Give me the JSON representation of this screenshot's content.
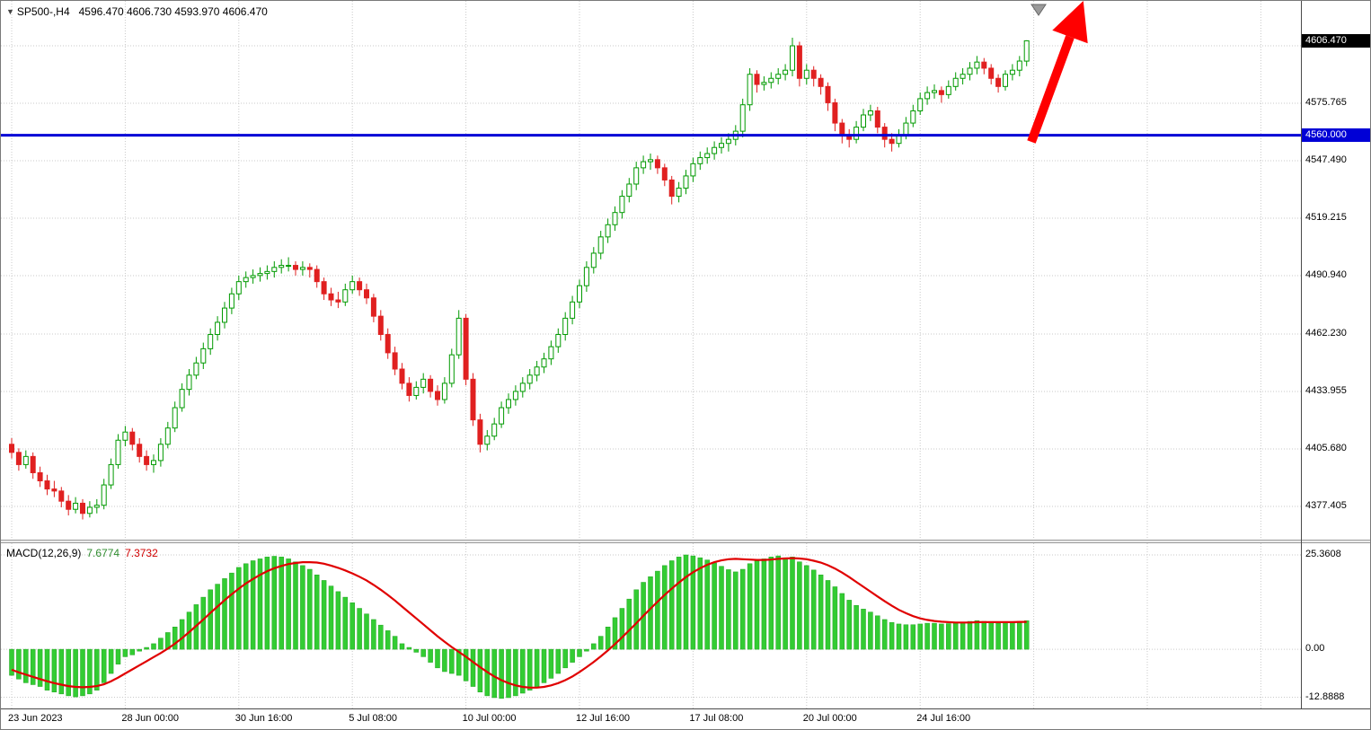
{
  "header": {
    "symbol": "SP500-,H4",
    "ohlc_text": "4596.470 4606.730 4593.970 4606.470"
  },
  "price_axis": {
    "current_price_tag": {
      "label": "4606.470",
      "price": 4606.47,
      "bg": "#000000",
      "fg": "#ffffff"
    },
    "level_tag": {
      "label": "4560.000",
      "price": 4560.0,
      "bg": "#0000d6",
      "fg": "#ffffff"
    },
    "ticks": [
      {
        "label": "4575.765",
        "price": 4575.765
      },
      {
        "label": "4547.490",
        "price": 4547.49
      },
      {
        "label": "4519.215",
        "price": 4519.215
      },
      {
        "label": "4490.940",
        "price": 4490.94
      },
      {
        "label": "4462.230",
        "price": 4462.23
      },
      {
        "label": "4433.955",
        "price": 4433.955
      },
      {
        "label": "4405.680",
        "price": 4405.68
      },
      {
        "label": "4377.405",
        "price": 4377.405
      }
    ],
    "unlabeled_gridline_price": 4604.04
  },
  "time_axis": {
    "labels": [
      "23 Jun 2023",
      "28 Jun 00:00",
      "30 Jun 16:00",
      "5 Jul 08:00",
      "10 Jul 00:00",
      "12 Jul 16:00",
      "17 Jul 08:00",
      "20 Jul 00:00",
      "24 Jul 16:00"
    ]
  },
  "macd_panel": {
    "name": "MACD(12,26,9)",
    "value_main": "7.6774",
    "value_signal": "7.3732",
    "axis_ticks": [
      {
        "label": "25.3608",
        "value": 25.3608
      },
      {
        "label": "0.00",
        "value": 0.0
      },
      {
        "label": "-12.8888",
        "value": -12.8888
      }
    ]
  },
  "objects": {
    "hline": {
      "price": 4560.0,
      "color": "#0000d6",
      "width": 3
    },
    "arrow": {
      "color": "#ff0000"
    },
    "top_marker": {
      "color": "#9a9a9a"
    }
  },
  "chart_data": {
    "type": "candlestick+macd",
    "symbol": "SP500",
    "timeframe": "H4",
    "title": "SP500-,H4 4596.470 4606.730 4593.970 4606.470",
    "price_range": [
      4360.2,
      4626.1
    ],
    "macd_range": [
      -15.9,
      28.5
    ],
    "grid": true,
    "colors": {
      "bull_fill": "#ffffff",
      "bull_stroke": "#009a00",
      "bear": "#e02020",
      "macd_bar": "#33cc33",
      "macd_bar_edge": "#1fa51f",
      "macd_signal": "#e00000",
      "grid": "#c9c9c9"
    },
    "candles": [
      [
        4408,
        4411,
        4401,
        4404
      ],
      [
        4404,
        4406,
        4395,
        4398
      ],
      [
        4398,
        4405,
        4396,
        4402
      ],
      [
        4402,
        4404,
        4391,
        4394
      ],
      [
        4394,
        4397,
        4387,
        4390
      ],
      [
        4390,
        4393,
        4383,
        4386
      ],
      [
        4386,
        4390,
        4382,
        4385
      ],
      [
        4385,
        4387,
        4377,
        4380
      ],
      [
        4380,
        4383,
        4373,
        4376
      ],
      [
        4376,
        4382,
        4374,
        4379
      ],
      [
        4379,
        4381,
        4371,
        4374
      ],
      [
        4374,
        4380,
        4372,
        4377
      ],
      [
        4377,
        4381,
        4374,
        4378
      ],
      [
        4378,
        4391,
        4376,
        4388
      ],
      [
        4388,
        4401,
        4386,
        4398
      ],
      [
        4398,
        4413,
        4396,
        4410
      ],
      [
        4410,
        4417,
        4407,
        4414
      ],
      [
        4414,
        4416,
        4405,
        4408
      ],
      [
        4408,
        4411,
        4399,
        4402
      ],
      [
        4402,
        4405,
        4395,
        4398
      ],
      [
        4398,
        4403,
        4394,
        4400
      ],
      [
        4400,
        4411,
        4397,
        4408
      ],
      [
        4408,
        4419,
        4406,
        4416
      ],
      [
        4416,
        4429,
        4414,
        4426
      ],
      [
        4426,
        4438,
        4424,
        4435
      ],
      [
        4435,
        4445,
        4432,
        4442
      ],
      [
        4442,
        4451,
        4440,
        4448
      ],
      [
        4448,
        4458,
        4445,
        4455
      ],
      [
        4455,
        4465,
        4452,
        4462
      ],
      [
        4462,
        4471,
        4459,
        4468
      ],
      [
        4468,
        4478,
        4465,
        4475
      ],
      [
        4475,
        4485,
        4472,
        4482
      ],
      [
        4482,
        4491,
        4479,
        4488
      ],
      [
        4488,
        4493,
        4485,
        4490
      ],
      [
        4490,
        4494,
        4487,
        4491
      ],
      [
        4491,
        4495,
        4488,
        4492
      ],
      [
        4492,
        4496,
        4489,
        4493
      ],
      [
        4493,
        4498,
        4490,
        4495
      ],
      [
        4495,
        4499,
        4492,
        4496
      ],
      [
        4496,
        4500,
        4493,
        4496
      ],
      [
        4496,
        4498,
        4491,
        4494
      ],
      [
        4494,
        4498,
        4491,
        4495
      ],
      [
        4495,
        4497,
        4490,
        4494
      ],
      [
        4494,
        4496,
        4485,
        4488
      ],
      [
        4488,
        4490,
        4479,
        4482
      ],
      [
        4482,
        4485,
        4476,
        4479
      ],
      [
        4479,
        4483,
        4475,
        4478
      ],
      [
        4478,
        4487,
        4476,
        4484
      ],
      [
        4484,
        4491,
        4482,
        4488
      ],
      [
        4488,
        4490,
        4481,
        4484
      ],
      [
        4484,
        4487,
        4477,
        4480
      ],
      [
        4480,
        4482,
        4468,
        4471
      ],
      [
        4471,
        4474,
        4459,
        4462
      ],
      [
        4462,
        4465,
        4450,
        4453
      ],
      [
        4453,
        4456,
        4442,
        4445
      ],
      [
        4445,
        4448,
        4435,
        4438
      ],
      [
        4438,
        4441,
        4429,
        4432
      ],
      [
        4432,
        4439,
        4430,
        4436
      ],
      [
        4436,
        4443,
        4433,
        4440
      ],
      [
        4440,
        4442,
        4431,
        4434
      ],
      [
        4434,
        4437,
        4427,
        4430
      ],
      [
        4430,
        4441,
        4428,
        4438
      ],
      [
        4438,
        4455,
        4436,
        4452
      ],
      [
        4452,
        4474,
        4450,
        4470
      ],
      [
        4470,
        4472,
        4437,
        4440
      ],
      [
        4440,
        4443,
        4417,
        4420
      ],
      [
        4420,
        4423,
        4404,
        4408
      ],
      [
        4408,
        4415,
        4405,
        4412
      ],
      [
        4412,
        4421,
        4410,
        4418
      ],
      [
        4418,
        4429,
        4416,
        4426
      ],
      [
        4426,
        4433,
        4423,
        4430
      ],
      [
        4430,
        4437,
        4427,
        4434
      ],
      [
        4434,
        4441,
        4431,
        4438
      ],
      [
        4438,
        4445,
        4435,
        4442
      ],
      [
        4442,
        4449,
        4439,
        4446
      ],
      [
        4446,
        4453,
        4443,
        4450
      ],
      [
        4450,
        4459,
        4447,
        4456
      ],
      [
        4456,
        4465,
        4453,
        4462
      ],
      [
        4462,
        4473,
        4459,
        4470
      ],
      [
        4470,
        4481,
        4467,
        4478
      ],
      [
        4478,
        4489,
        4475,
        4486
      ],
      [
        4486,
        4498,
        4483,
        4495
      ],
      [
        4495,
        4505,
        4492,
        4502
      ],
      [
        4502,
        4513,
        4499,
        4510
      ],
      [
        4510,
        4519,
        4507,
        4516
      ],
      [
        4516,
        4525,
        4513,
        4522
      ],
      [
        4522,
        4533,
        4519,
        4530
      ],
      [
        4530,
        4539,
        4527,
        4536
      ],
      [
        4536,
        4547,
        4533,
        4544
      ],
      [
        4544,
        4550,
        4541,
        4547
      ],
      [
        4547,
        4551,
        4543,
        4548
      ],
      [
        4548,
        4550,
        4541,
        4544
      ],
      [
        4544,
        4546,
        4535,
        4538
      ],
      [
        4538,
        4540,
        4526,
        4530
      ],
      [
        4530,
        4537,
        4527,
        4534
      ],
      [
        4534,
        4543,
        4531,
        4540
      ],
      [
        4540,
        4549,
        4537,
        4546
      ],
      [
        4546,
        4552,
        4543,
        4549
      ],
      [
        4549,
        4554,
        4546,
        4551
      ],
      [
        4551,
        4557,
        4548,
        4554
      ],
      [
        4554,
        4559,
        4551,
        4556
      ],
      [
        4556,
        4561,
        4552,
        4558
      ],
      [
        4558,
        4565,
        4555,
        4562
      ],
      [
        4562,
        4578,
        4559,
        4575
      ],
      [
        4575,
        4593,
        4572,
        4590
      ],
      [
        4590,
        4592,
        4581,
        4585
      ],
      [
        4585,
        4589,
        4582,
        4586
      ],
      [
        4586,
        4591,
        4583,
        4588
      ],
      [
        4588,
        4593,
        4585,
        4590
      ],
      [
        4590,
        4595,
        4587,
        4592
      ],
      [
        4592,
        4608,
        4589,
        4604
      ],
      [
        4604,
        4606,
        4584,
        4588
      ],
      [
        4588,
        4595,
        4585,
        4592
      ],
      [
        4592,
        4594,
        4584,
        4588
      ],
      [
        4588,
        4590,
        4580,
        4584
      ],
      [
        4584,
        4586,
        4572,
        4576
      ],
      [
        4576,
        4578,
        4562,
        4566
      ],
      [
        4566,
        4568,
        4556,
        4560
      ],
      [
        4560,
        4563,
        4554,
        4558
      ],
      [
        4558,
        4567,
        4556,
        4564
      ],
      [
        4564,
        4573,
        4562,
        4570
      ],
      [
        4570,
        4575,
        4567,
        4572
      ],
      [
        4572,
        4574,
        4561,
        4564
      ],
      [
        4564,
        4566,
        4554,
        4558
      ],
      [
        4558,
        4561,
        4552,
        4556
      ],
      [
        4556,
        4563,
        4554,
        4560
      ],
      [
        4560,
        4569,
        4558,
        4566
      ],
      [
        4566,
        4575,
        4564,
        4572
      ],
      [
        4572,
        4581,
        4570,
        4578
      ],
      [
        4578,
        4584,
        4575,
        4581
      ],
      [
        4581,
        4585,
        4578,
        4582
      ],
      [
        4582,
        4584,
        4576,
        4580
      ],
      [
        4580,
        4587,
        4578,
        4584
      ],
      [
        4584,
        4591,
        4582,
        4588
      ],
      [
        4588,
        4593,
        4585,
        4590
      ],
      [
        4590,
        4596,
        4587,
        4593
      ],
      [
        4593,
        4599,
        4590,
        4596
      ],
      [
        4596,
        4598,
        4590,
        4593
      ],
      [
        4593,
        4595,
        4585,
        4588
      ],
      [
        4588,
        4590,
        4581,
        4584
      ],
      [
        4584,
        4592,
        4582,
        4590
      ],
      [
        4590,
        4595,
        4587,
        4592
      ],
      [
        4592,
        4599,
        4589,
        4596.5
      ],
      [
        4596.47,
        4606.73,
        4593.97,
        4606.47
      ]
    ],
    "macd": {
      "histogram": [
        -7,
        -8,
        -9,
        -9.5,
        -10,
        -11,
        -11.5,
        -12,
        -12.5,
        -12.8,
        -12.5,
        -12,
        -11,
        -9,
        -6.5,
        -4,
        -2,
        -1.5,
        -0.5,
        0.5,
        1.5,
        3,
        4.5,
        6,
        8,
        10,
        12,
        14,
        16,
        17.5,
        19,
        20.5,
        22,
        23,
        23.8,
        24.3,
        24.8,
        25,
        24.8,
        24.3,
        23.5,
        22.5,
        21.5,
        20,
        18.5,
        17,
        15.5,
        14,
        12.5,
        11,
        9.5,
        8,
        6.5,
        5,
        3.5,
        1.5,
        0.5,
        -0.8,
        -2,
        -3.5,
        -5,
        -6,
        -6.5,
        -7,
        -8.5,
        -10,
        -11.5,
        -12.5,
        -13,
        -13.2,
        -13,
        -12.5,
        -11.8,
        -11,
        -10,
        -9,
        -7.8,
        -6.5,
        -5,
        -3.5,
        -2,
        -0.5,
        1.5,
        3.5,
        6,
        8.5,
        11,
        13.5,
        16,
        18,
        19.5,
        21,
        22.5,
        23.8,
        24.8,
        25.36,
        25.1,
        24.6,
        24,
        23.2,
        22.3,
        21.4,
        20.8,
        21.5,
        23,
        23.8,
        24.3,
        24.8,
        25.1,
        24.6,
        24.8,
        23.5,
        22.5,
        21.3,
        20,
        18.5,
        16.8,
        15,
        13.2,
        11.8,
        10.8,
        10,
        9,
        8,
        7.2,
        6.8,
        6.6,
        6.6,
        6.8,
        7,
        7,
        6.8,
        6.9,
        7.1,
        7.3,
        7.5,
        7.7,
        7.5,
        7.2,
        7,
        7.1,
        7.3,
        7.5,
        7.6774
      ],
      "signal": [
        -5.5,
        -6.2,
        -6.8,
        -7.4,
        -8,
        -8.6,
        -9.1,
        -9.5,
        -9.9,
        -10.1,
        -10.2,
        -10.1,
        -9.9,
        -9.4,
        -8.6,
        -7.6,
        -6.5,
        -5.4,
        -4.3,
        -3.2,
        -2.1,
        -1,
        0.2,
        1.5,
        3,
        4.6,
        6.3,
        8,
        9.8,
        11.5,
        13.2,
        14.8,
        16.3,
        17.7,
        18.9,
        20,
        21,
        21.8,
        22.4,
        22.9,
        23.2,
        23.4,
        23.4,
        23.3,
        23,
        22.5,
        21.9,
        21.2,
        20.4,
        19.5,
        18.5,
        17.3,
        16,
        14.6,
        13.1,
        11.5,
        9.9,
        8.3,
        6.7,
        5.1,
        3.5,
        2,
        0.6,
        -0.7,
        -2,
        -3.4,
        -4.8,
        -6.1,
        -7.3,
        -8.3,
        -9.1,
        -9.7,
        -10.1,
        -10.3,
        -10.3,
        -10.1,
        -9.7,
        -9.1,
        -8.3,
        -7.3,
        -6.1,
        -4.8,
        -3.4,
        -1.9,
        -0.3,
        1.4,
        3.2,
        5.1,
        7,
        9,
        10.9,
        12.8,
        14.6,
        16.3,
        17.9,
        19.4,
        20.7,
        21.8,
        22.7,
        23.4,
        23.9,
        24.2,
        24.3,
        24.2,
        24.1,
        24,
        24,
        24.1,
        24.3,
        24.4,
        24.5,
        24.4,
        24.2,
        23.8,
        23.3,
        22.6,
        21.7,
        20.6,
        19.4,
        18.1,
        16.8,
        15.5,
        14.2,
        12.9,
        11.7,
        10.6,
        9.7,
        8.9,
        8.3,
        7.9,
        7.6,
        7.4,
        7.3,
        7.2,
        7.2,
        7.2,
        7.3,
        7.3,
        7.3,
        7.3,
        7.3,
        7.3,
        7.35,
        7.3732
      ]
    }
  }
}
